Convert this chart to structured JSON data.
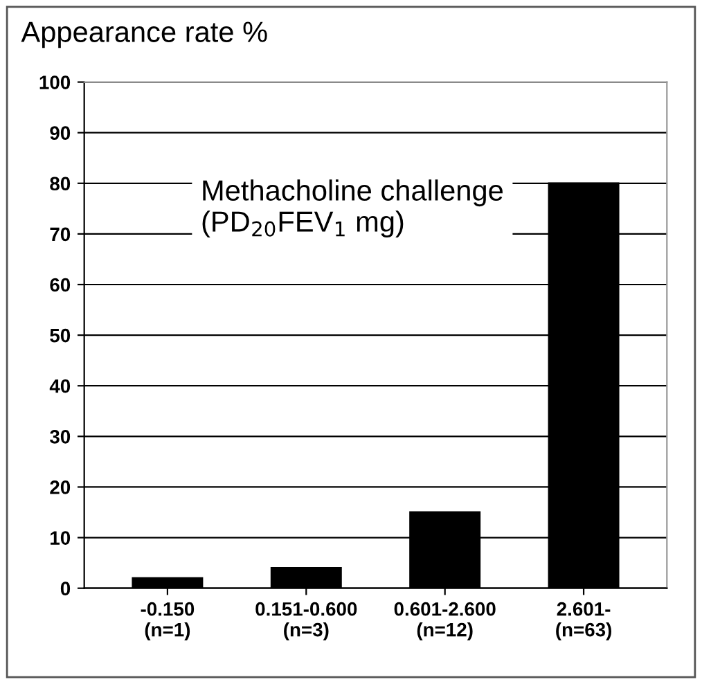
{
  "chart_data": {
    "type": "bar",
    "ylabel": "Appearance rate %",
    "categories": [
      "-0.150\n(n=1)",
      "0.151-0.600\n(n=3)",
      "0.601-2.600\n(n=12)",
      "2.601-\n(n=63)"
    ],
    "values": [
      2,
      4,
      15,
      80
    ],
    "color": "#000000",
    "ylim": [
      0,
      100
    ],
    "yticks": [
      0,
      10,
      20,
      30,
      40,
      50,
      60,
      70,
      80,
      90,
      100
    ],
    "grid": "y",
    "annotations": [
      "Methacholine challenge\n(PD$_{20}$FEV$_{1}$ mg)"
    ]
  }
}
